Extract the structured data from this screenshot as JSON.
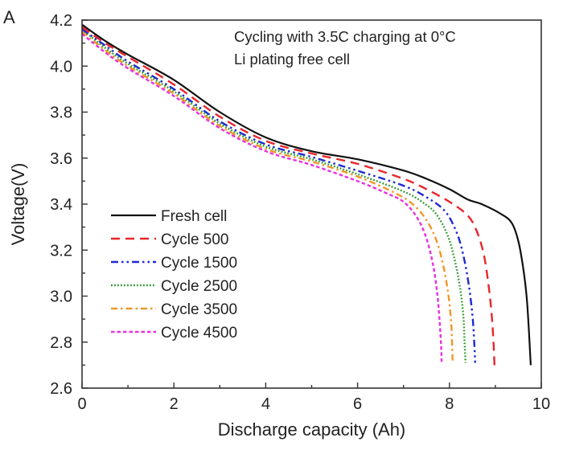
{
  "chart_data": {
    "type": "line",
    "panel_label": "A",
    "title": "",
    "annotation": [
      "Cycling with 3.5C charging at 0°C",
      "Li plating free cell"
    ],
    "xlabel": "Discharge capacity (Ah)",
    "ylabel": "Voltage(V)",
    "xlim": [
      0,
      10
    ],
    "ylim": [
      2.6,
      4.2
    ],
    "xticks": [
      0,
      2,
      4,
      6,
      8,
      10
    ],
    "xtick_labels": [
      "0",
      "2",
      "4",
      "6",
      "8",
      "10"
    ],
    "yticks": [
      2.6,
      2.8,
      3.0,
      3.2,
      3.4,
      3.6,
      3.8,
      4.0,
      4.2
    ],
    "ytick_labels": [
      "2.6",
      "2.8",
      "3.0",
      "3.2",
      "3.4",
      "3.6",
      "3.8",
      "4.0",
      "4.2"
    ],
    "grid": false,
    "legend_position": "lower-left",
    "series": [
      {
        "name": "Fresh cell",
        "color": "#111111",
        "style": "solid",
        "x": [
          0,
          0.5,
          1,
          2,
          3,
          4,
          5,
          6,
          7,
          7.5,
          8,
          8.4,
          8.7,
          9.1,
          9.35,
          9.5,
          9.6,
          9.68,
          9.73,
          9.77
        ],
        "y": [
          4.18,
          4.11,
          4.05,
          3.94,
          3.8,
          3.69,
          3.63,
          3.595,
          3.546,
          3.51,
          3.465,
          3.42,
          3.4,
          3.36,
          3.32,
          3.24,
          3.13,
          3.0,
          2.85,
          2.7
        ]
      },
      {
        "name": "Cycle 500",
        "color": "#e8262b",
        "style": "dashed",
        "x": [
          0,
          0.5,
          1,
          2,
          3,
          4,
          5,
          6,
          7,
          7.5,
          8,
          8.4,
          8.6,
          8.75,
          8.85,
          8.92,
          8.96,
          8.98
        ],
        "y": [
          4.17,
          4.1,
          4.04,
          3.92,
          3.78,
          3.675,
          3.62,
          3.575,
          3.51,
          3.465,
          3.41,
          3.35,
          3.28,
          3.18,
          3.05,
          2.92,
          2.8,
          2.7
        ]
      },
      {
        "name": "Cycle 1500",
        "color": "#1f2ad1",
        "style": "dashdotdot",
        "x": [
          0,
          0.5,
          1,
          2,
          3,
          4,
          5,
          6,
          7,
          7.5,
          7.9,
          8.15,
          8.3,
          8.42,
          8.5,
          8.54,
          8.56
        ],
        "y": [
          4.16,
          4.09,
          4.02,
          3.9,
          3.76,
          3.66,
          3.605,
          3.545,
          3.48,
          3.43,
          3.37,
          3.28,
          3.18,
          3.05,
          2.92,
          2.8,
          2.71
        ]
      },
      {
        "name": "Cycle 2500",
        "color": "#2e9a2e",
        "style": "dotted",
        "x": [
          0,
          0.5,
          1,
          2,
          3,
          4,
          5,
          6,
          7,
          7.4,
          7.7,
          7.95,
          8.1,
          8.22,
          8.3,
          8.33,
          8.35
        ],
        "y": [
          4.16,
          4.08,
          4.01,
          3.89,
          3.75,
          3.65,
          3.595,
          3.53,
          3.455,
          3.41,
          3.36,
          3.27,
          3.17,
          3.05,
          2.92,
          2.8,
          2.71
        ]
      },
      {
        "name": "Cycle 3500",
        "color": "#f0962a",
        "style": "dashdot",
        "x": [
          0,
          0.5,
          1,
          2,
          3,
          4,
          5,
          6,
          6.8,
          7.2,
          7.5,
          7.72,
          7.88,
          7.98,
          8.04,
          8.06,
          8.07
        ],
        "y": [
          4.15,
          4.07,
          4.0,
          3.88,
          3.74,
          3.64,
          3.585,
          3.52,
          3.45,
          3.4,
          3.33,
          3.24,
          3.12,
          3.0,
          2.88,
          2.78,
          2.71
        ]
      },
      {
        "name": "Cycle 4500",
        "color": "#e830e0",
        "style": "shortdash",
        "x": [
          0,
          0.5,
          1,
          2,
          3,
          4,
          5,
          6,
          6.6,
          7.0,
          7.3,
          7.5,
          7.65,
          7.74,
          7.79,
          7.82,
          7.83
        ],
        "y": [
          4.14,
          4.06,
          3.99,
          3.87,
          3.73,
          3.63,
          3.57,
          3.5,
          3.45,
          3.41,
          3.34,
          3.25,
          3.13,
          3.0,
          2.88,
          2.78,
          2.71
        ]
      }
    ]
  }
}
